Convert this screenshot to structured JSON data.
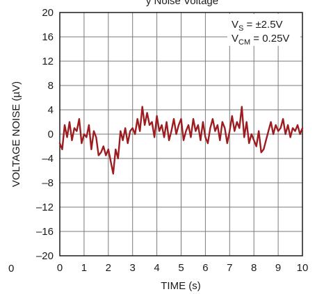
{
  "page_title_fragment": "y Noise Voltage",
  "stray_left_label": "0",
  "chart_data": {
    "type": "line",
    "xlabel": "TIME (s)",
    "ylabel": "VOLTAGE NOISE (µV)",
    "xlim": [
      0,
      10
    ],
    "ylim": [
      -20,
      20
    ],
    "x_ticks": [
      "0",
      "1",
      "2",
      "3",
      "4",
      "5",
      "6",
      "7",
      "8",
      "9",
      "10"
    ],
    "y_ticks": [
      "20",
      "16",
      "12",
      "8",
      "4",
      "0",
      "–4",
      "–8",
      "–12",
      "–16",
      "–20"
    ],
    "grid": true,
    "line_color": "#9c1c20",
    "annotation": {
      "line1_prefix": "V",
      "line1_sub": "S",
      "line1_suffix": " = ±2.5V",
      "line2_prefix": "V",
      "line2_sub": "CM",
      "line2_suffix": " = 0.25V",
      "placement": "top-right"
    },
    "series": [
      {
        "x": [
          0.0,
          0.1,
          0.2,
          0.3,
          0.4,
          0.5,
          0.6,
          0.7,
          0.8,
          0.9,
          1.0,
          1.1,
          1.2,
          1.3,
          1.4,
          1.5,
          1.6,
          1.7,
          1.8,
          1.9,
          2.0,
          2.1,
          2.2,
          2.3,
          2.4,
          2.5,
          2.6,
          2.7,
          2.8,
          2.9,
          3.0,
          3.1,
          3.2,
          3.3,
          3.4,
          3.5,
          3.6,
          3.7,
          3.8,
          3.9,
          4.0,
          4.1,
          4.2,
          4.3,
          4.4,
          4.5,
          4.6,
          4.7,
          4.8,
          4.9,
          5.0,
          5.1,
          5.2,
          5.3,
          5.4,
          5.5,
          5.6,
          5.7,
          5.8,
          5.9,
          6.0,
          6.1,
          6.2,
          6.3,
          6.4,
          6.5,
          6.6,
          6.7,
          6.8,
          6.9,
          7.0,
          7.1,
          7.2,
          7.3,
          7.4,
          7.5,
          7.6,
          7.7,
          7.8,
          7.9,
          8.0,
          8.1,
          8.2,
          8.3,
          8.4,
          8.5,
          8.6,
          8.7,
          8.8,
          8.9,
          9.0,
          9.1,
          9.2,
          9.3,
          9.4,
          9.5,
          9.6,
          9.7,
          9.8,
          9.9,
          10.0
        ],
        "y": [
          -1.5,
          -2.5,
          1.5,
          -0.5,
          2.0,
          -1.0,
          1.0,
          0.5,
          2.5,
          -1.5,
          0.0,
          -0.5,
          1.5,
          -2.5,
          0.5,
          -0.5,
          -3.5,
          -3.0,
          -2.0,
          -3.5,
          -2.5,
          -4.5,
          -6.5,
          -2.5,
          -4.0,
          0.5,
          -1.0,
          1.0,
          -1.5,
          0.5,
          1.0,
          0.0,
          2.5,
          0.5,
          4.5,
          1.5,
          3.5,
          1.5,
          2.0,
          -0.5,
          3.0,
          0.5,
          1.5,
          -0.5,
          2.0,
          -1.0,
          0.5,
          2.5,
          0.0,
          1.5,
          2.5,
          -1.0,
          0.5,
          1.5,
          -0.5,
          2.5,
          0.5,
          1.5,
          -1.0,
          2.0,
          -0.5,
          -1.5,
          1.0,
          2.5,
          0.5,
          1.5,
          -1.0,
          2.0,
          1.0,
          -1.5,
          0.5,
          3.0,
          0.5,
          2.0,
          1.0,
          4.5,
          -0.5,
          2.0,
          -1.5,
          0.0,
          -1.0,
          -2.0,
          0.5,
          -3.0,
          -2.5,
          -1.0,
          0.5,
          2.0,
          0.0,
          1.5,
          0.5,
          1.0,
          2.5,
          0.0,
          1.5,
          -0.5,
          1.0,
          0.5,
          1.5,
          0.0,
          1.0
        ]
      }
    ]
  }
}
